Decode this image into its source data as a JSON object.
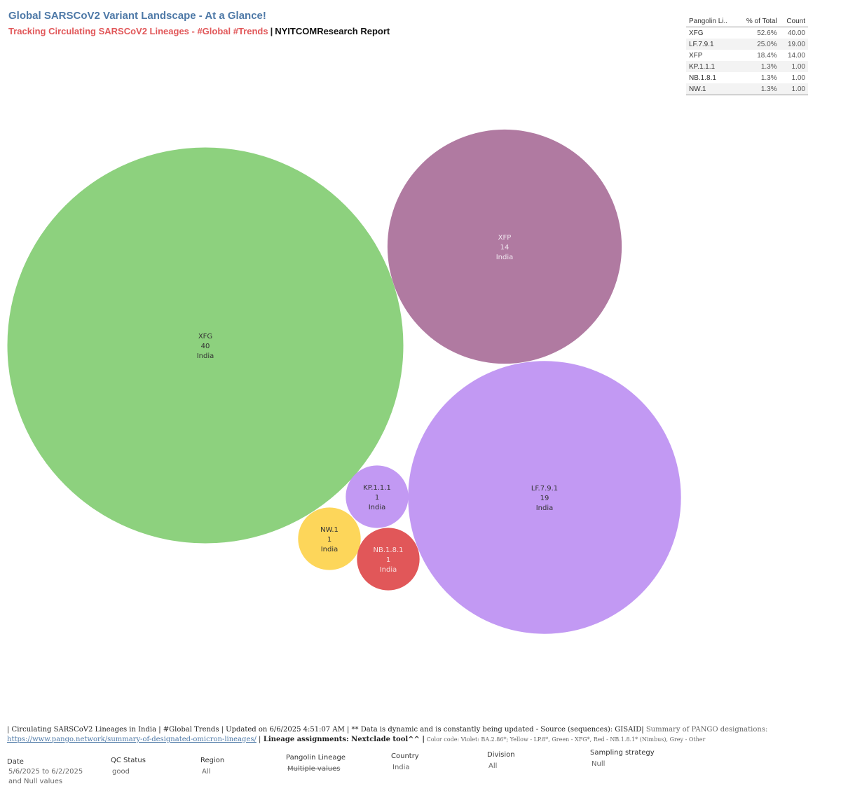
{
  "header": {
    "title": "Global SARSCoV2 Variant Landscape - At a Glance!",
    "subtitle_red": "Tracking Circulating SARSCoV2 Lineages - #Global #Trends",
    "subtitle_sep": "|",
    "subtitle_black": "NYITCOMResearch Report"
  },
  "summary_table": {
    "headers": [
      "Pangolin Li..",
      "% of Total",
      "Count"
    ],
    "rows": [
      {
        "lineage": "XFG",
        "pct": "52.6%",
        "count": "40.00"
      },
      {
        "lineage": "LF.7.9.1",
        "pct": "25.0%",
        "count": "19.00"
      },
      {
        "lineage": "XFP",
        "pct": "18.4%",
        "count": "14.00"
      },
      {
        "lineage": "KP.1.1.1",
        "pct": "1.3%",
        "count": "1.00"
      },
      {
        "lineage": "NB.1.8.1",
        "pct": "1.3%",
        "count": "1.00"
      },
      {
        "lineage": "NW.1",
        "pct": "1.3%",
        "count": "1.00"
      }
    ]
  },
  "chart_data": {
    "type": "bubble",
    "size_measure": "count",
    "series": [
      {
        "lineage": "XFG",
        "count": 40,
        "country": "India",
        "color": "#8dd17e",
        "text_color": "#333333"
      },
      {
        "lineage": "XFP",
        "count": 14,
        "country": "India",
        "color": "#b07aa1",
        "text_color": "#f0e6ef"
      },
      {
        "lineage": "LF.7.9.1",
        "count": 19,
        "country": "India",
        "color": "#c299f3",
        "text_color": "#333333"
      },
      {
        "lineage": "KP.1.1.1",
        "count": 1,
        "country": "India",
        "color": "#c299f3",
        "text_color": "#333333"
      },
      {
        "lineage": "NW.1",
        "count": 1,
        "country": "India",
        "color": "#fdd65a",
        "text_color": "#333333"
      },
      {
        "lineage": "NB.1.8.1",
        "count": 1,
        "country": "India",
        "color": "#e15759",
        "text_color": "#f7dede"
      }
    ]
  },
  "footer": {
    "line1_main": "| Circulating SARSCoV2 Lineages in India | #Global Trends | Updated on 6/6/2025 4:51:07 AM | ** Data is dynamic and is constantly being updated - Source (sequences): GISAID|",
    "line1_grey": " Summary of PANGO designations:",
    "link": "https://www.pango.network/summary-of-designated-omicron-lineages/",
    "link_sep": " |",
    "bold_text": "  Lineage assignments: Nextclade tool^^ |",
    "color_code": "  Color code: Violet: BA.2.86*; Yellow - LP.8*, Green - XFG*, Red - NB.1.8.1* (Nimbus),  Grey - Other"
  },
  "filters": {
    "date": {
      "label": "Date",
      "value": "5/6/2025 to 6/2/2025",
      "value2": "and Null values"
    },
    "qc_status": {
      "label": "QC Status",
      "value": "good"
    },
    "region": {
      "label": "Region",
      "value": "All"
    },
    "pangolin_lineage": {
      "label": "Pangolin Lineage",
      "value": "Multiple values"
    },
    "country": {
      "label": "Country",
      "value": "India"
    },
    "division": {
      "label": "Division",
      "value": "All"
    },
    "sampling_strategy": {
      "label": "Sampling strategy",
      "value": "Null"
    }
  }
}
